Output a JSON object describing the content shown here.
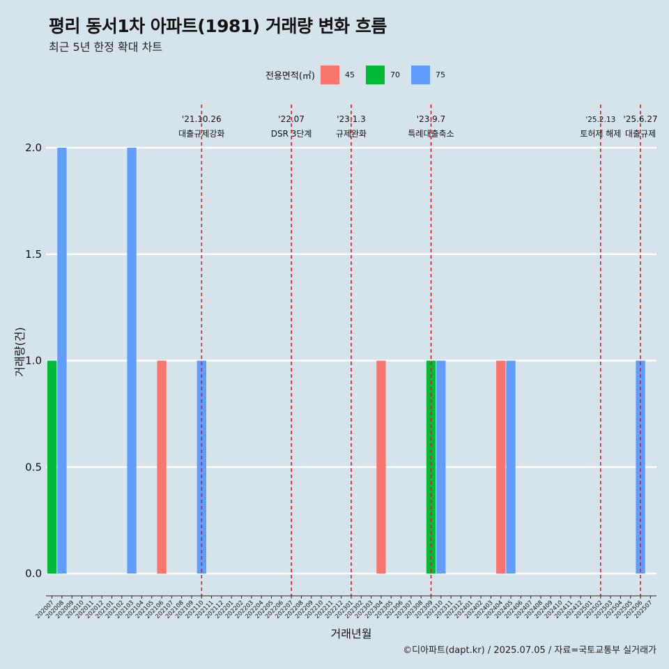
{
  "title": "평리 동서1차 아파트(1981) 거래량 변화 흐름",
  "subtitle": "최근 5년 한정 확대 차트",
  "caption": "©디아파트(dapt.kr) / 2025.07.05 / 자료=국토교통부 실거래가",
  "legend": {
    "title": "전용면적(㎡)",
    "items": [
      {
        "label": "45",
        "color": "#f8766d"
      },
      {
        "label": "70",
        "color": "#00ba38"
      },
      {
        "label": "75",
        "color": "#619cff"
      }
    ]
  },
  "chart_data": {
    "type": "bar",
    "xlabel": "거래년월",
    "ylabel": "거래량(건)",
    "ylim": [
      0,
      2
    ],
    "yticks": [
      "0.0",
      "0.5",
      "1.0",
      "1.5",
      "2.0"
    ],
    "grid": true,
    "legend_position": "top",
    "categories": [
      "202007",
      "202008",
      "202009",
      "202010",
      "202011",
      "202012",
      "202101",
      "202102",
      "202103",
      "202104",
      "202105",
      "202106",
      "202107",
      "202108",
      "202109",
      "202110",
      "202111",
      "202112",
      "202201",
      "202202",
      "202203",
      "202204",
      "202205",
      "202206",
      "202207",
      "202208",
      "202209",
      "202210",
      "202211",
      "202212",
      "202301",
      "202302",
      "202303",
      "202304",
      "202305",
      "202306",
      "202307",
      "202308",
      "202309",
      "202310",
      "202311",
      "202312",
      "202401",
      "202402",
      "202403",
      "202404",
      "202405",
      "202406",
      "202407",
      "202408",
      "202409",
      "202410",
      "202411",
      "202412",
      "202501",
      "202502",
      "202503",
      "202504",
      "202505",
      "202506",
      "202507"
    ],
    "series": [
      {
        "name": "45",
        "color": "#f8766d",
        "points": [
          {
            "x": "202106",
            "y": 1
          },
          {
            "x": "202304",
            "y": 1
          },
          {
            "x": "202404",
            "y": 1
          }
        ]
      },
      {
        "name": "70",
        "color": "#00ba38",
        "points": [
          {
            "x": "202007",
            "y": 1
          },
          {
            "x": "202309",
            "y": 1
          }
        ]
      },
      {
        "name": "75",
        "color": "#619cff",
        "points": [
          {
            "x": "202008",
            "y": 2
          },
          {
            "x": "202103",
            "y": 2
          },
          {
            "x": "202110",
            "y": 1
          },
          {
            "x": "202310",
            "y": 1
          },
          {
            "x": "202405",
            "y": 1
          },
          {
            "x": "202506",
            "y": 1
          }
        ]
      }
    ],
    "events": [
      {
        "x": "202110",
        "date": "'21.10.26",
        "label": "대출규제강화"
      },
      {
        "x": "202207",
        "date": "'22.07",
        "label": "DSR 3단계"
      },
      {
        "x": "202301",
        "date": "'23.1.3",
        "label": "규제완화"
      },
      {
        "x": "202309",
        "date": "'23.9.7",
        "label": "특례대출축소"
      },
      {
        "x": "202502",
        "date": "'25.2.13",
        "label": "토허제 해제"
      },
      {
        "x": "202506",
        "date": "'25.6.27",
        "label": "대출규제"
      }
    ],
    "event_line_color": "#e41a1c"
  }
}
